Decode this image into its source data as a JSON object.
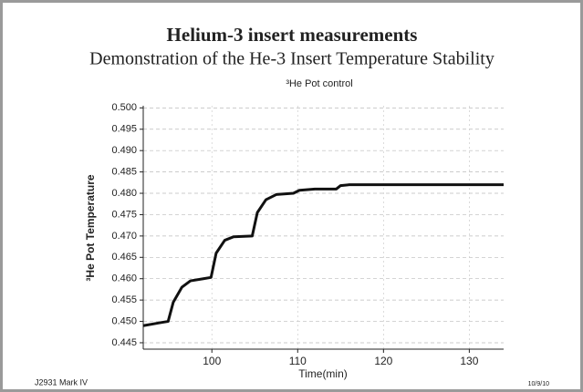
{
  "header": {
    "title": "Helium-3 insert measurements",
    "subtitle": "Demonstration of the He-3 Insert Temperature Stability"
  },
  "footer": {
    "left": "J2931 Mark IV",
    "right": "10/9/10"
  },
  "chart_data": {
    "type": "line",
    "title": "³He Pot control",
    "x_label": "Time(min)",
    "y_label": "³He Pot Temperature",
    "x": [
      92,
      94,
      94.9,
      95.5,
      96.5,
      97.5,
      99,
      99.9,
      100.5,
      101.5,
      102.5,
      104.7,
      105.3,
      106.3,
      107.5,
      109.5,
      110.2,
      112,
      114.5,
      115,
      116,
      134
    ],
    "series": [
      {
        "name": "³He Pot",
        "color": "#111111",
        "values": [
          0.449,
          0.4497,
          0.45,
          0.4545,
          0.458,
          0.4595,
          0.46,
          0.4603,
          0.466,
          0.469,
          0.4698,
          0.47,
          0.4755,
          0.4785,
          0.4797,
          0.48,
          0.4807,
          0.481,
          0.481,
          0.4818,
          0.482,
          0.482
        ]
      }
    ],
    "xlim": [
      92,
      134
    ],
    "xticks": [
      100,
      110,
      120,
      130
    ],
    "ylim": [
      0.4435,
      0.5005
    ],
    "yticks": [
      {
        "value": 0.445,
        "label": "0.445"
      },
      {
        "value": 0.45,
        "label": "0.450"
      },
      {
        "value": 0.455,
        "label": "0.455"
      },
      {
        "value": 0.46,
        "label": "0.460"
      },
      {
        "value": 0.465,
        "label": "0.465"
      },
      {
        "value": 0.47,
        "label": "0.470"
      },
      {
        "value": 0.475,
        "label": "0.475"
      },
      {
        "value": 0.48,
        "label": "0.480"
      },
      {
        "value": 0.485,
        "label": "0.485"
      },
      {
        "value": 0.49,
        "label": "0.490"
      },
      {
        "value": 0.495,
        "label": "0.495"
      },
      {
        "value": 0.5,
        "label": "0.500"
      }
    ],
    "grid": true
  }
}
